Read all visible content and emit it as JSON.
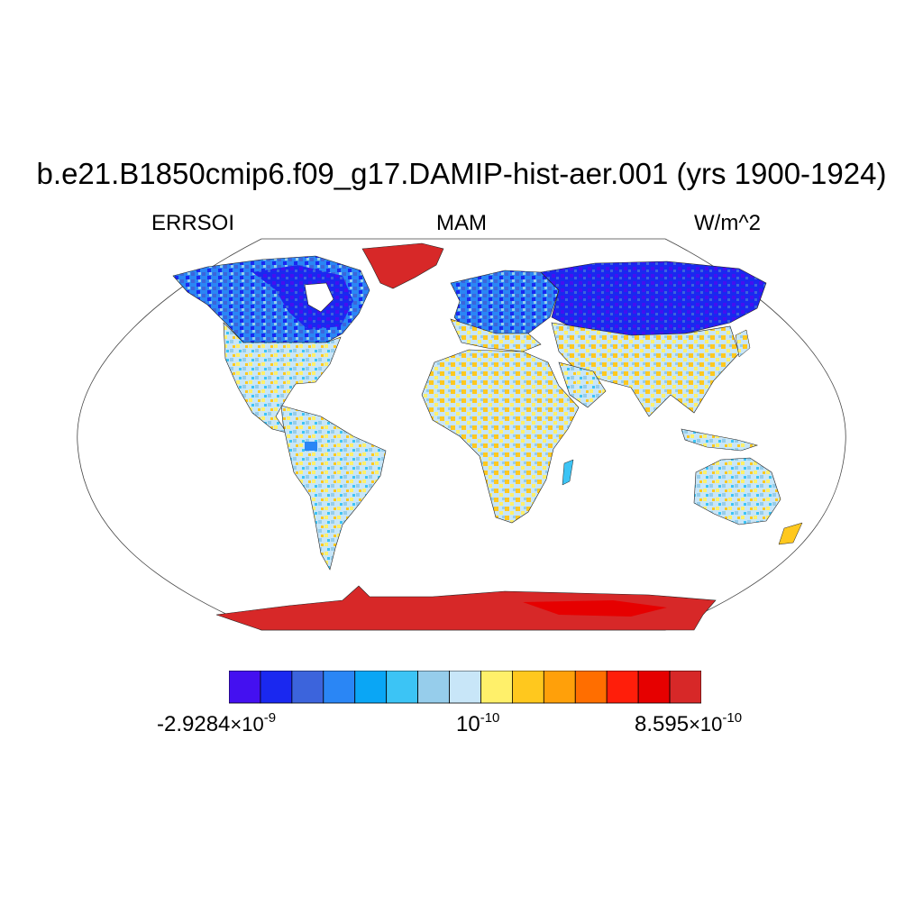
{
  "title": "b.e21.B1850cmip6.f09_g17.DAMIP-hist-aer.001 (yrs 1900-1924)",
  "subtitle_left": "ERRSOI",
  "subtitle_center": "MAM",
  "subtitle_right": "W/m^2",
  "colorbar": {
    "colors": [
      "#4410f0",
      "#1a28f0",
      "#3c64dc",
      "#2a86f5",
      "#0aa6f5",
      "#3cc4f5",
      "#96cdeb",
      "#c8e6f8",
      "#fff06a",
      "#ffc81e",
      "#ffa00a",
      "#ff6e00",
      "#ff1e0a",
      "#e60000",
      "#d72828"
    ],
    "label_left": {
      "mantissa": "-2.9284",
      "times": "×10",
      "exponent": "-9"
    },
    "label_center": {
      "base": "10",
      "exponent": "-10"
    },
    "label_right": {
      "mantissa": "8.595",
      "times": "×10",
      "exponent": "-10"
    }
  },
  "map": {
    "projection": "Robinson",
    "variable": "ERRSOI",
    "regions": [
      {
        "name": "Greenland",
        "level": "high"
      },
      {
        "name": "Antarctica",
        "level": "high"
      },
      {
        "name": "Canada",
        "level": "low"
      },
      {
        "name": "Siberia",
        "level": "low"
      },
      {
        "name": "United States",
        "level": "mixed"
      },
      {
        "name": "Europe",
        "level": "mixed"
      },
      {
        "name": "Africa",
        "level": "near-zero mixed"
      },
      {
        "name": "South America",
        "level": "near-zero mixed"
      },
      {
        "name": "Asia",
        "level": "mixed"
      },
      {
        "name": "Australia",
        "level": "near-zero mixed"
      }
    ]
  }
}
